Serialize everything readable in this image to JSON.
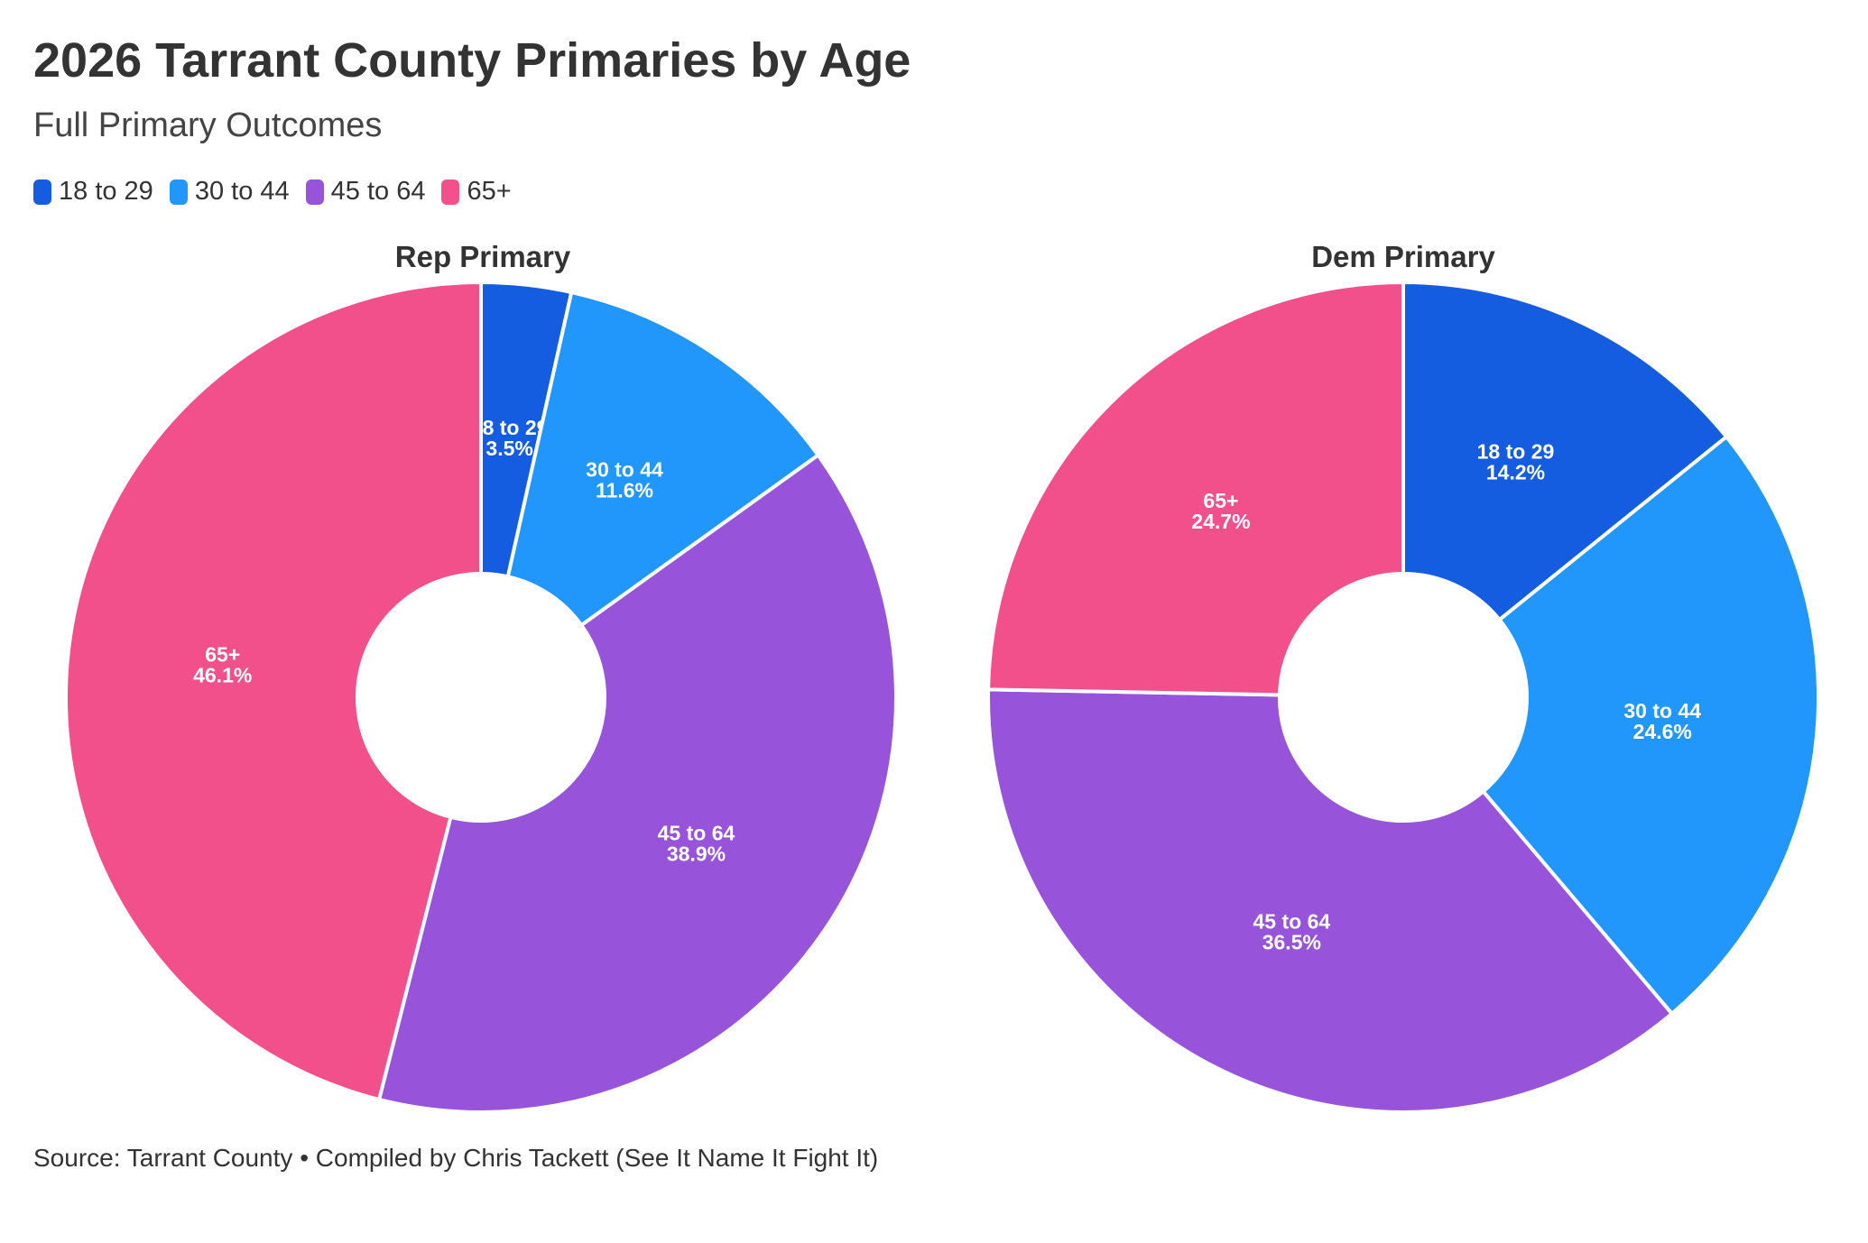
{
  "title": "2026 Tarrant County Primaries by Age",
  "subtitle": "Full Primary Outcomes",
  "legend": [
    {
      "label": "18 to 29",
      "color": "#155DE0"
    },
    {
      "label": "30 to 44",
      "color": "#2196FB"
    },
    {
      "label": "45 to 64",
      "color": "#9754DA"
    },
    {
      "label": "65+",
      "color": "#F2508A"
    }
  ],
  "chart_data": [
    {
      "type": "pie",
      "title": "Rep Primary",
      "categories": [
        "18 to 29",
        "30 to 44",
        "45 to 64",
        "65+"
      ],
      "values": [
        3.5,
        11.6,
        38.9,
        46.1
      ],
      "value_labels": [
        "3.5%",
        "11.6%",
        "38.9%",
        "46.1%"
      ],
      "colors": [
        "#155DE0",
        "#2196FB",
        "#9754DA",
        "#F2508A"
      ]
    },
    {
      "type": "pie",
      "title": "Dem Primary",
      "categories": [
        "18 to 29",
        "30 to 44",
        "45 to 64",
        "65+"
      ],
      "values": [
        14.2,
        24.6,
        36.5,
        24.7
      ],
      "value_labels": [
        "14.2%",
        "24.6%",
        "36.5%",
        "24.7%"
      ],
      "colors": [
        "#155DE0",
        "#2196FB",
        "#9754DA",
        "#F2508A"
      ]
    }
  ],
  "source": "Source: Tarrant County • Compiled by Chris Tackett (See It Name It Fight It)"
}
